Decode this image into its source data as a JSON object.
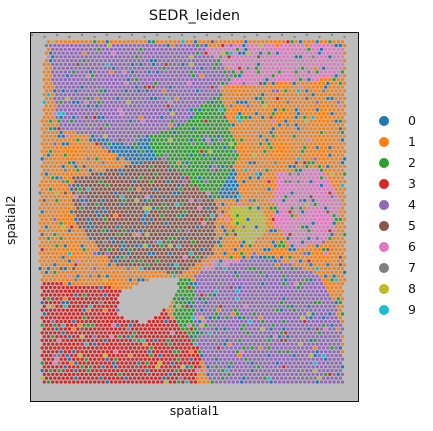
{
  "chart_data": {
    "type": "scatter",
    "title": "SEDR_leiden",
    "xlabel": "spatial1",
    "ylabel": "spatial2",
    "grid": false,
    "legend_position": "right",
    "xlim": [
      0,
      1
    ],
    "ylim": [
      0,
      1
    ],
    "background_color": "#bdbdbd",
    "categories": [
      "0",
      "1",
      "2",
      "3",
      "4",
      "5",
      "6",
      "7",
      "8",
      "9"
    ],
    "category_colors": [
      "#1f77b4",
      "#ff7f0e",
      "#2ca02c",
      "#d62728",
      "#9467bd",
      "#8c564b",
      "#e377c2",
      "#7f7f7f",
      "#bcbd22",
      "#17becf"
    ]
  }
}
